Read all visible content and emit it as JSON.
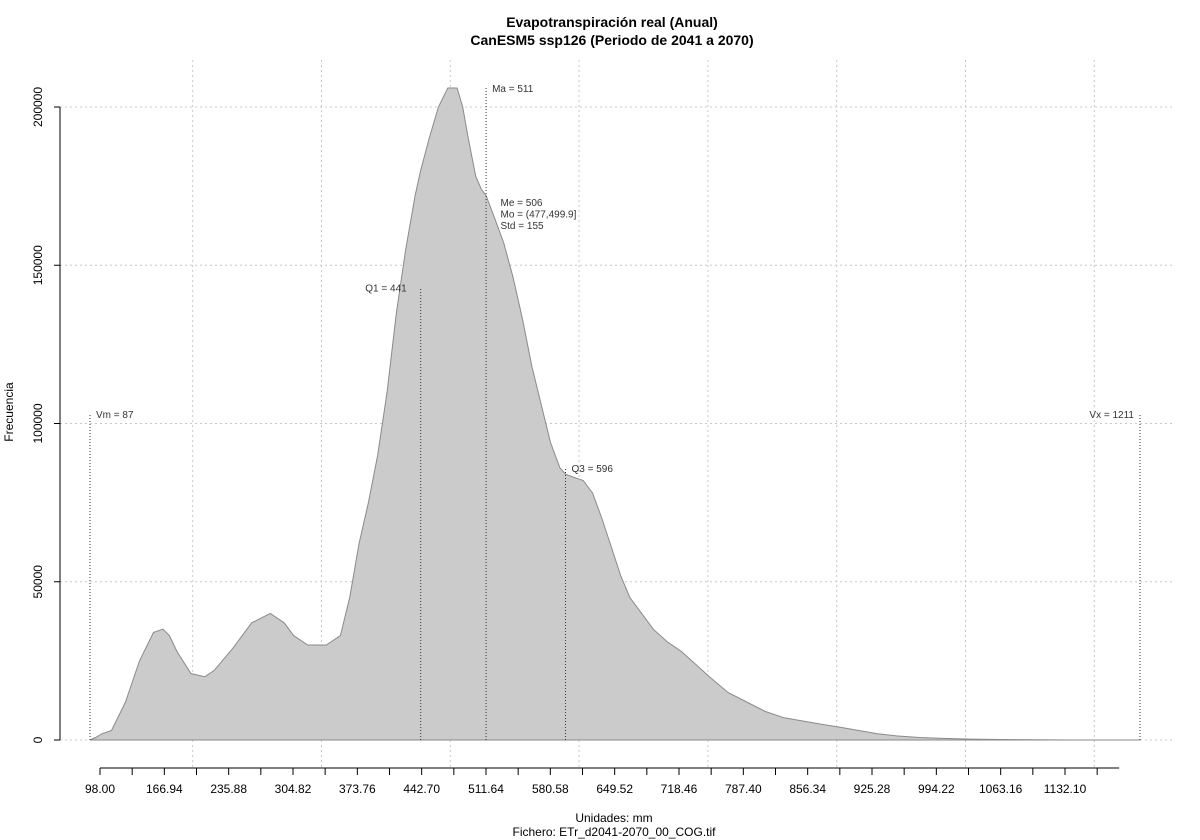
{
  "chart_data": {
    "type": "area",
    "title": "Evapotranspiración real (Anual)",
    "subtitle": "CanESM5 ssp126 (Periodo de 2041 a 2070)",
    "xlabel": "Unidades: mm",
    "ylabel": "Frecuencia",
    "footer": "Fichero: ETr_d2041-2070_00_COG.tif",
    "xlim": [
      87,
      1211
    ],
    "ylim": [
      0,
      200000
    ],
    "grid": true,
    "x_tick_labels": [
      "98.00",
      "166.94",
      "235.88",
      "304.82",
      "373.76",
      "442.70",
      "511.64",
      "580.58",
      "649.52",
      "718.46",
      "787.40",
      "856.34",
      "925.28",
      "994.22",
      "1063.16",
      "1132.10"
    ],
    "y_tick_labels": [
      "0",
      "50000",
      "100000",
      "150000",
      "200000"
    ],
    "x": [
      87,
      93,
      100,
      110,
      125,
      140,
      155,
      165,
      172,
      180,
      195,
      210,
      220,
      240,
      260,
      280,
      295,
      305,
      320,
      340,
      355,
      365,
      375,
      385,
      395,
      405,
      415,
      425,
      435,
      441,
      450,
      460,
      470,
      480,
      486,
      492,
      500,
      506,
      511,
      520,
      530,
      540,
      550,
      560,
      570,
      580,
      590,
      596,
      605,
      615,
      625,
      635,
      645,
      655,
      665,
      675,
      690,
      705,
      720,
      735,
      750,
      770,
      790,
      810,
      830,
      850,
      870,
      890,
      910,
      930,
      950,
      975,
      1000,
      1030,
      1060,
      1100,
      1140,
      1180,
      1211
    ],
    "y": [
      0,
      800,
      2000,
      3000,
      12000,
      25000,
      34000,
      35000,
      33000,
      28000,
      21000,
      20000,
      22000,
      29000,
      37000,
      40000,
      37000,
      33000,
      30000,
      30000,
      33000,
      45000,
      62000,
      75000,
      90000,
      110000,
      135000,
      155000,
      172000,
      180000,
      190000,
      200000,
      206000,
      206000,
      200000,
      190000,
      178000,
      174000,
      172000,
      165000,
      157000,
      146000,
      133000,
      118000,
      106000,
      94000,
      86000,
      84000,
      83000,
      82000,
      78000,
      70000,
      61000,
      52000,
      45000,
      41000,
      35000,
      31000,
      28000,
      24000,
      20000,
      15000,
      12000,
      9000,
      7000,
      6000,
      5000,
      4000,
      3000,
      2000,
      1300,
      800,
      500,
      300,
      150,
      50,
      10,
      0,
      0
    ],
    "annotations": [
      {
        "label": "Vm = 87",
        "x": 87,
        "y": 103000,
        "line_to_y": 103000
      },
      {
        "label": "Q1 = 441",
        "x": 441,
        "y": 143000,
        "line_to_y": 143000
      },
      {
        "label": "Ma = 511",
        "x": 511,
        "y": 206000,
        "line_to_y": 206000
      },
      {
        "label": "Q3 = 596",
        "x": 596,
        "y": 86000,
        "line_to_y": 86000
      },
      {
        "label": "Vx = 1211",
        "x": 1211,
        "y": 103000,
        "line_to_y": 103000
      }
    ],
    "stats_box": {
      "x": 520,
      "y": 170000,
      "lines": [
        "Me = 506",
        "Mo = (477,499.9]",
        "Std = 155"
      ]
    }
  }
}
